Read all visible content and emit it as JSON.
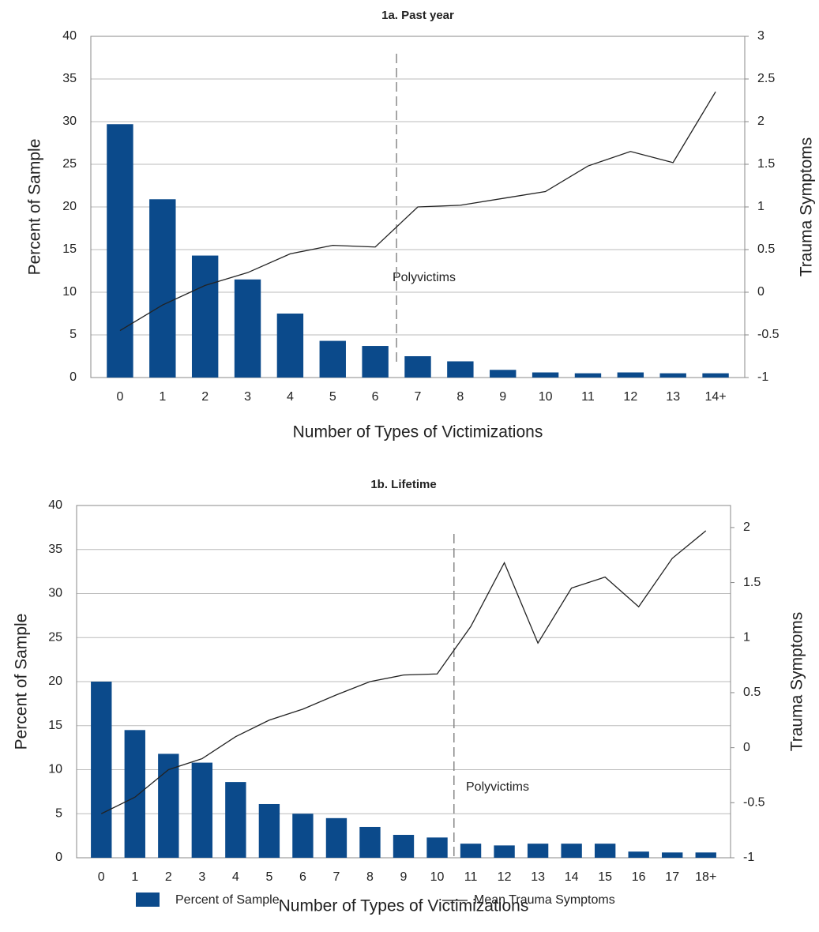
{
  "chart_data": [
    {
      "type": "bar",
      "title": "1a. Past year",
      "x_label": "Number of Types of Victimizations",
      "y_label": "Percent of Sample",
      "y2_label": "Trauma Symptoms",
      "categories": [
        "0",
        "1",
        "2",
        "3",
        "4",
        "5",
        "6",
        "7",
        "8",
        "9",
        "10",
        "11",
        "12",
        "13",
        "14+"
      ],
      "series": [
        {
          "color": "#0b4a8b",
          "values": [
            29.7,
            20.9,
            14.3,
            11.5,
            7.5,
            4.3,
            3.7,
            2.5,
            1.9,
            0.9,
            0.6,
            0.5,
            0.6,
            0.5,
            0.5
          ]
        },
        {
          "color": "#222222",
          "axis": "y2",
          "values": [
            -0.45,
            -0.15,
            0.08,
            0.23,
            0.45,
            0.55,
            0.53,
            1.0,
            1.02,
            1.1,
            1.18,
            1.48,
            1.65,
            1.52,
            2.35
          ]
        }
      ],
      "ylim": [
        0,
        40
      ],
      "yticks": [
        0,
        5,
        10,
        15,
        20,
        25,
        30,
        35,
        40
      ],
      "y2lim": [
        -1,
        3
      ],
      "y2ticks": [
        -1,
        -0.5,
        0,
        0.5,
        1,
        1.5,
        2,
        2.5,
        3
      ],
      "grid": true,
      "annotations": [
        "Polyvictims"
      ]
    },
    {
      "type": "bar",
      "title": "1b. Lifetime",
      "x_label": "Number of Types of Victimizations",
      "y_label": "Percent of Sample",
      "y2_label": "Trauma Symptoms",
      "categories": [
        "0",
        "1",
        "2",
        "3",
        "4",
        "5",
        "6",
        "7",
        "8",
        "9",
        "10",
        "11",
        "12",
        "13",
        "14",
        "15",
        "16",
        "17",
        "18+"
      ],
      "series": [
        {
          "name": "Percent of Sample",
          "color": "#0b4a8b",
          "values": [
            20,
            14.5,
            11.8,
            10.8,
            8.6,
            6.1,
            5.0,
            4.5,
            3.5,
            2.6,
            2.3,
            1.6,
            1.4,
            1.6,
            1.6,
            1.6,
            0.7,
            0.6,
            0.6
          ]
        },
        {
          "name": "Mean Trauma Symptoms",
          "color": "#222222",
          "axis": "y2",
          "values": [
            -0.6,
            -0.45,
            -0.2,
            -0.1,
            0.1,
            0.25,
            0.35,
            0.48,
            0.6,
            0.66,
            0.67,
            1.1,
            1.68,
            0.95,
            1.45,
            1.55,
            1.28,
            1.72,
            1.97
          ]
        }
      ],
      "ylim": [
        0,
        40
      ],
      "yticks": [
        0,
        5,
        10,
        15,
        20,
        25,
        30,
        35,
        40
      ],
      "y2lim": [
        -1,
        2.2
      ],
      "y2ticks": [
        -1,
        -0.5,
        0,
        0.5,
        1,
        1.5,
        2
      ],
      "grid": true,
      "annotations": [
        "Polyvictims"
      ]
    }
  ]
}
